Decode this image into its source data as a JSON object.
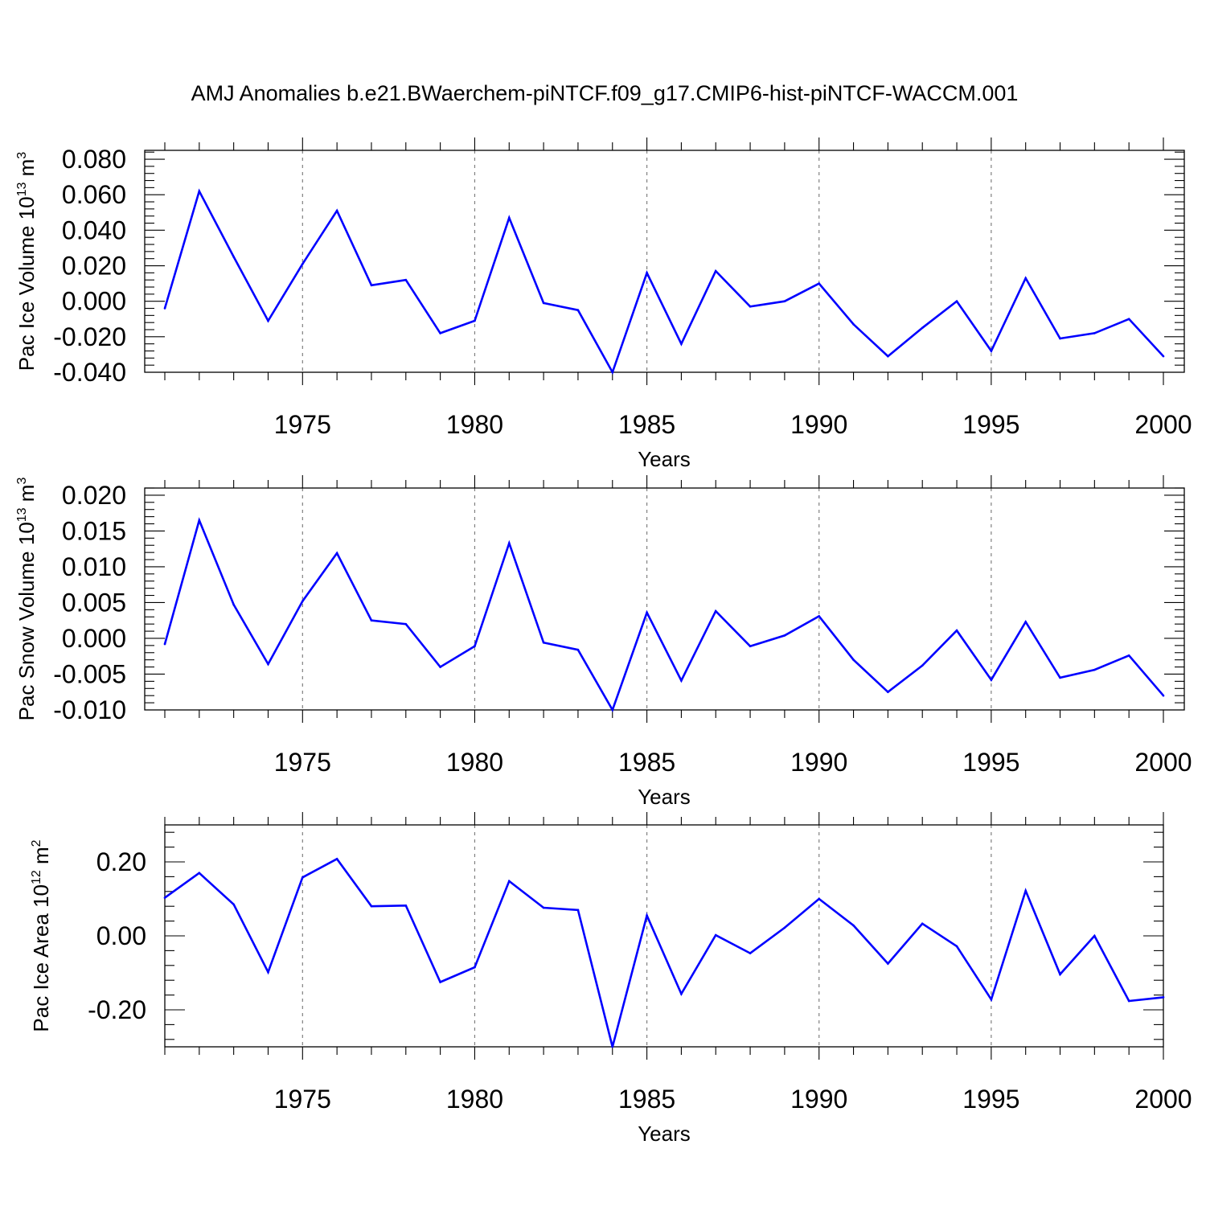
{
  "figure_title": "AMJ Anomalies b.e21.BWaerchem-piNTCF.f09_g17.CMIP6-hist-piNTCF-WACCM.001",
  "colors": {
    "line": "#0000ff",
    "axis": "#000000",
    "grid": "#808080"
  },
  "chart_data": [
    {
      "type": "line",
      "title": "",
      "xlabel": "Years",
      "ylabel": {
        "main": "Pac Ice Volume 10",
        "exp": "13",
        "unit": " m",
        "unit_exp": "3"
      },
      "xlim": [
        1971,
        2000
      ],
      "ylim": [
        -0.04,
        0.085
      ],
      "y_ticks": [
        -0.04,
        -0.02,
        0.0,
        0.02,
        0.04,
        0.06,
        0.08
      ],
      "y_tick_labels": [
        "-0.040",
        "-0.020",
        "0.000",
        "0.020",
        "0.040",
        "0.060",
        "0.080"
      ],
      "x_ticks": [
        1975,
        1980,
        1985,
        1990,
        1995,
        2000
      ],
      "x_tick_labels": [
        "1975",
        "1980",
        "1985",
        "1990",
        "1995",
        "2000"
      ],
      "grid": "vertical dashed at major x ticks",
      "series": [
        {
          "name": "Pac Ice Volume",
          "x": [
            1971,
            1972,
            1973,
            1974,
            1975,
            1976,
            1977,
            1978,
            1979,
            1980,
            1981,
            1982,
            1983,
            1984,
            1985,
            1986,
            1987,
            1988,
            1989,
            1990,
            1991,
            1992,
            1993,
            1994,
            1995,
            1996,
            1997,
            1998,
            1999,
            2000
          ],
          "values": [
            -0.004,
            0.062,
            0.025,
            -0.011,
            0.021,
            0.051,
            0.009,
            0.012,
            -0.018,
            -0.011,
            0.047,
            -0.001,
            -0.005,
            -0.04,
            0.016,
            -0.024,
            0.017,
            -0.003,
            0.0,
            0.01,
            -0.013,
            -0.031,
            -0.015,
            0.0,
            -0.028,
            0.013,
            -0.021,
            -0.018,
            -0.01,
            -0.031
          ]
        }
      ]
    },
    {
      "type": "line",
      "title": "",
      "xlabel": "Years",
      "ylabel": {
        "main": "Pac Snow Volume 10",
        "exp": "13",
        "unit": " m",
        "unit_exp": "3"
      },
      "xlim": [
        1971,
        2000
      ],
      "ylim": [
        -0.01,
        0.021
      ],
      "y_ticks": [
        -0.01,
        -0.005,
        0.0,
        0.005,
        0.01,
        0.015,
        0.02
      ],
      "y_tick_labels": [
        "-0.010",
        "-0.005",
        "0.000",
        "0.005",
        "0.010",
        "0.015",
        "0.020"
      ],
      "x_ticks": [
        1975,
        1980,
        1985,
        1990,
        1995,
        2000
      ],
      "x_tick_labels": [
        "1975",
        "1980",
        "1985",
        "1990",
        "1995",
        "2000"
      ],
      "grid": "vertical dashed at major x ticks",
      "series": [
        {
          "name": "Pac Snow Volume",
          "x": [
            1971,
            1972,
            1973,
            1974,
            1975,
            1976,
            1977,
            1978,
            1979,
            1980,
            1981,
            1982,
            1983,
            1984,
            1985,
            1986,
            1987,
            1988,
            1989,
            1990,
            1991,
            1992,
            1993,
            1994,
            1995,
            1996,
            1997,
            1998,
            1999,
            2000
          ],
          "values": [
            -0.0008,
            0.0165,
            0.0047,
            -0.0036,
            0.0052,
            0.0119,
            0.0025,
            0.002,
            -0.004,
            -0.0011,
            0.0133,
            -0.0006,
            -0.0016,
            -0.01,
            0.0036,
            -0.0059,
            0.0038,
            -0.0011,
            0.0004,
            0.0031,
            -0.003,
            -0.0075,
            -0.0038,
            0.0011,
            -0.0058,
            0.0023,
            -0.0055,
            -0.0044,
            -0.0024,
            -0.008
          ]
        }
      ]
    },
    {
      "type": "line",
      "title": "",
      "xlabel": "Years",
      "ylabel": {
        "main": "Pac Ice Area 10",
        "exp": "12",
        "unit": " m",
        "unit_exp": "2"
      },
      "xlim": [
        1971,
        2000
      ],
      "ylim": [
        -0.3,
        0.3
      ],
      "y_ticks": [
        -0.2,
        0.0,
        0.2
      ],
      "y_tick_labels": [
        "-0.20",
        "0.00",
        "0.20"
      ],
      "x_ticks": [
        1975,
        1980,
        1985,
        1990,
        1995,
        2000
      ],
      "x_tick_labels": [
        "1975",
        "1980",
        "1985",
        "1990",
        "1995",
        "2000"
      ],
      "grid": "vertical dashed at major x ticks",
      "series": [
        {
          "name": "Pac Ice Area",
          "x": [
            1971,
            1972,
            1973,
            1974,
            1975,
            1976,
            1977,
            1978,
            1979,
            1980,
            1981,
            1982,
            1983,
            1984,
            1985,
            1986,
            1987,
            1988,
            1989,
            1990,
            1991,
            1992,
            1993,
            1994,
            1995,
            1996,
            1997,
            1998,
            1999,
            2000
          ],
          "values": [
            0.103,
            0.17,
            0.085,
            -0.098,
            0.158,
            0.208,
            0.08,
            0.082,
            -0.125,
            -0.085,
            0.148,
            0.076,
            0.07,
            -0.3,
            0.055,
            -0.157,
            0.002,
            -0.047,
            0.022,
            0.1,
            0.028,
            -0.075,
            0.033,
            -0.028,
            -0.172,
            0.122,
            -0.104,
            0.0,
            -0.176,
            -0.166
          ]
        }
      ]
    }
  ]
}
